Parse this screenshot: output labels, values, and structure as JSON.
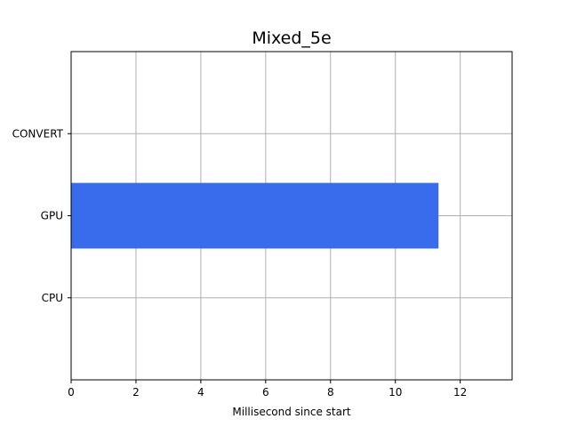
{
  "chart_data": {
    "type": "bar",
    "orientation": "horizontal",
    "title": "Mixed_5e",
    "xlabel": "Millisecond since start",
    "ylabel": "",
    "categories": [
      "CPU",
      "GPU",
      "CONVERT"
    ],
    "series": [
      {
        "bars": [
          {
            "category": "GPU",
            "start": 0,
            "end": 11.33
          }
        ]
      }
    ],
    "xlim": [
      0,
      13.6
    ],
    "xticks": [
      0,
      2,
      4,
      6,
      8,
      10,
      12
    ],
    "grid": true,
    "colors": {
      "bar": "#386ced",
      "grid": "#b0b0b0",
      "axis": "#000000",
      "background": "#ffffff"
    }
  }
}
